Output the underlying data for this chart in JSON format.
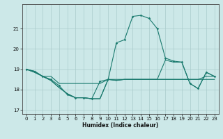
{
  "title": "",
  "xlabel": "Humidex (Indice chaleur)",
  "background_color": "#cce8e8",
  "grid_color": "#aacccc",
  "line_color": "#1a7a6e",
  "xlim": [
    -0.5,
    23.5
  ],
  "ylim": [
    16.8,
    22.2
  ],
  "yticks": [
    17,
    18,
    19,
    20,
    21
  ],
  "xticks": [
    0,
    1,
    2,
    3,
    4,
    5,
    6,
    7,
    8,
    9,
    10,
    11,
    12,
    13,
    14,
    15,
    16,
    17,
    18,
    19,
    20,
    21,
    22,
    23
  ],
  "line1_x": [
    0,
    1,
    2,
    3,
    4,
    5,
    6,
    7,
    8,
    9,
    10,
    11,
    12,
    13,
    14,
    15,
    16,
    17,
    18,
    19,
    20,
    21,
    22,
    23
  ],
  "line1_y": [
    19.0,
    18.9,
    18.65,
    18.65,
    18.3,
    18.3,
    18.3,
    18.3,
    18.3,
    18.3,
    18.5,
    18.5,
    18.5,
    18.5,
    18.5,
    18.5,
    18.5,
    18.5,
    18.5,
    18.5,
    18.5,
    18.5,
    18.5,
    18.5
  ],
  "line2_x": [
    0,
    1,
    2,
    3,
    4,
    5,
    6,
    7,
    8,
    9,
    10,
    11,
    12,
    13,
    14,
    15,
    16,
    17,
    18,
    19,
    20,
    21,
    22,
    23
  ],
  "line2_y": [
    19.0,
    18.9,
    18.65,
    18.5,
    18.2,
    17.75,
    17.6,
    17.6,
    17.55,
    18.4,
    18.5,
    20.3,
    20.45,
    21.6,
    21.65,
    21.5,
    21.0,
    19.55,
    19.4,
    19.35,
    18.3,
    18.05,
    18.85,
    18.65
  ],
  "line3_x": [
    0,
    1,
    2,
    3,
    4,
    5,
    6,
    7,
    8,
    9,
    10,
    11,
    12,
    13,
    14,
    15,
    16,
    17,
    18,
    19,
    20,
    21,
    22,
    23
  ],
  "line3_y": [
    19.0,
    18.85,
    18.65,
    18.45,
    18.1,
    17.8,
    17.6,
    17.6,
    17.55,
    17.55,
    18.5,
    18.45,
    18.5,
    18.5,
    18.5,
    18.5,
    18.5,
    19.45,
    19.35,
    19.35,
    18.3,
    18.05,
    18.85,
    18.65
  ],
  "line4_x": [
    0,
    1,
    2,
    3,
    4,
    5,
    6,
    7,
    8,
    9,
    10,
    11,
    12,
    13,
    14,
    15,
    16,
    17,
    18,
    19,
    20,
    21,
    22,
    23
  ],
  "line4_y": [
    19.0,
    18.85,
    18.65,
    18.45,
    18.1,
    17.8,
    17.6,
    17.6,
    17.55,
    17.55,
    18.5,
    18.45,
    18.5,
    18.5,
    18.5,
    18.5,
    18.5,
    18.5,
    18.5,
    18.5,
    18.5,
    18.5,
    18.65,
    18.65
  ]
}
